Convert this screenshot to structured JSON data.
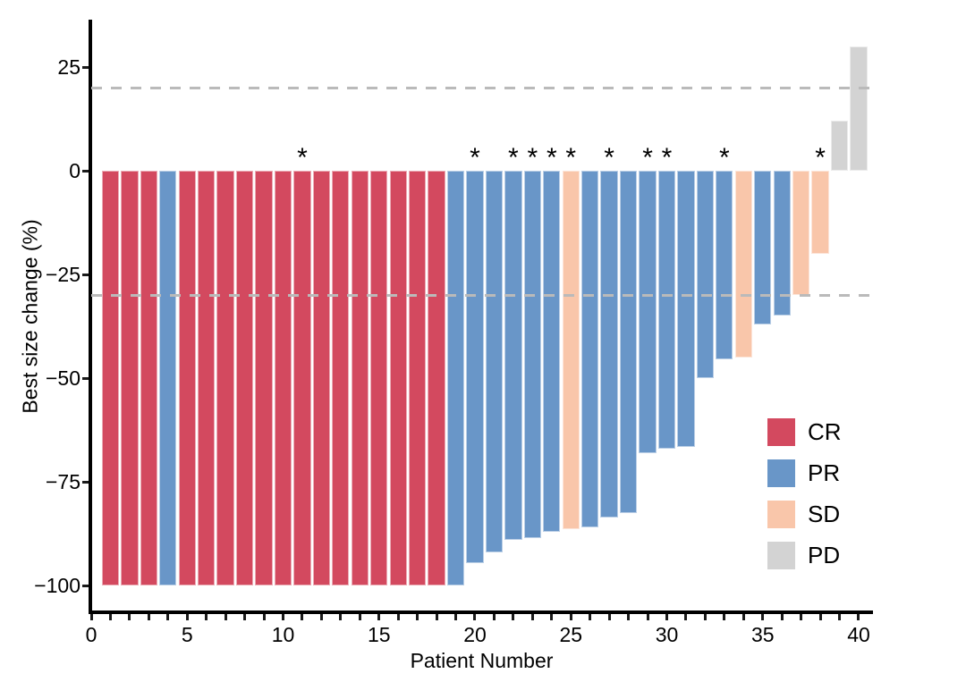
{
  "chart_data": {
    "type": "bar",
    "subtype": "waterfall",
    "title": "",
    "xlabel": "Patient Number",
    "ylabel": "Best size change (%)",
    "xlim": [
      0,
      40.7
    ],
    "ylim": [
      -106,
      36
    ],
    "grid": "off",
    "legend_position": "right-lower",
    "marker_symbol": "*",
    "marker_meaning_visible": false,
    "x_major_ticks": [
      {
        "value": 0,
        "label": "0"
      },
      {
        "value": 5,
        "label": "5"
      },
      {
        "value": 10,
        "label": "10"
      },
      {
        "value": 15,
        "label": "15"
      },
      {
        "value": 20,
        "label": "20"
      },
      {
        "value": 25,
        "label": "25"
      },
      {
        "value": 30,
        "label": "30"
      },
      {
        "value": 35,
        "label": "35"
      },
      {
        "value": 40,
        "label": "40"
      }
    ],
    "x_minor_tick_step": 1,
    "y_ticks": [
      {
        "value": 25,
        "label": "25"
      },
      {
        "value": 0,
        "label": "0"
      },
      {
        "value": -25,
        "label": "−25"
      },
      {
        "value": -50,
        "label": "−50"
      },
      {
        "value": -75,
        "label": "−75"
      },
      {
        "value": -100,
        "label": "−100"
      }
    ],
    "reference_lines": [
      {
        "value": 20,
        "style": "dashed",
        "color": "#bababa"
      },
      {
        "value": -30,
        "style": "dashed",
        "color": "#bababa"
      }
    ],
    "colors": {
      "CR": "#d3495f",
      "PR": "#6996c8",
      "SD": "#f9c6aa",
      "PD": "#d3d3d3"
    },
    "legend": [
      {
        "code": "CR",
        "label": "CR",
        "color": "#d3495f"
      },
      {
        "code": "PR",
        "label": "PR",
        "color": "#6996c8"
      },
      {
        "code": "SD",
        "label": "SD",
        "color": "#f9c6aa"
      },
      {
        "code": "PD",
        "label": "PD",
        "color": "#d3d3d3"
      }
    ],
    "bar_width_fraction": 0.9,
    "bars": [
      {
        "patient": 1,
        "value": -100,
        "response": "CR",
        "star": false
      },
      {
        "patient": 2,
        "value": -100,
        "response": "CR",
        "star": false
      },
      {
        "patient": 3,
        "value": -100,
        "response": "CR",
        "star": false
      },
      {
        "patient": 4,
        "value": -100,
        "response": "PR",
        "star": false
      },
      {
        "patient": 5,
        "value": -100,
        "response": "CR",
        "star": false
      },
      {
        "patient": 6,
        "value": -100,
        "response": "CR",
        "star": false
      },
      {
        "patient": 7,
        "value": -100,
        "response": "CR",
        "star": false
      },
      {
        "patient": 8,
        "value": -100,
        "response": "CR",
        "star": false
      },
      {
        "patient": 9,
        "value": -100,
        "response": "CR",
        "star": false
      },
      {
        "patient": 10,
        "value": -100,
        "response": "CR",
        "star": false
      },
      {
        "patient": 11,
        "value": -100,
        "response": "CR",
        "star": true
      },
      {
        "patient": 12,
        "value": -100,
        "response": "CR",
        "star": false
      },
      {
        "patient": 13,
        "value": -100,
        "response": "CR",
        "star": false
      },
      {
        "patient": 14,
        "value": -100,
        "response": "CR",
        "star": false
      },
      {
        "patient": 15,
        "value": -100,
        "response": "CR",
        "star": false
      },
      {
        "patient": 16,
        "value": -100,
        "response": "CR",
        "star": false
      },
      {
        "patient": 17,
        "value": -100,
        "response": "CR",
        "star": false
      },
      {
        "patient": 18,
        "value": -100,
        "response": "CR",
        "star": false
      },
      {
        "patient": 19,
        "value": -100,
        "response": "PR",
        "star": false
      },
      {
        "patient": 20,
        "value": -94.5,
        "response": "PR",
        "star": true
      },
      {
        "patient": 21,
        "value": -92,
        "response": "PR",
        "star": false
      },
      {
        "patient": 22,
        "value": -89,
        "response": "PR",
        "star": true
      },
      {
        "patient": 23,
        "value": -88.5,
        "response": "PR",
        "star": true
      },
      {
        "patient": 24,
        "value": -87,
        "response": "PR",
        "star": true
      },
      {
        "patient": 25,
        "value": -86.5,
        "response": "SD",
        "star": true
      },
      {
        "patient": 26,
        "value": -86,
        "response": "PR",
        "star": false
      },
      {
        "patient": 27,
        "value": -83.5,
        "response": "PR",
        "star": true
      },
      {
        "patient": 28,
        "value": -82.5,
        "response": "PR",
        "star": false
      },
      {
        "patient": 29,
        "value": -68,
        "response": "PR",
        "star": true
      },
      {
        "patient": 30,
        "value": -67,
        "response": "PR",
        "star": true
      },
      {
        "patient": 31,
        "value": -66.5,
        "response": "PR",
        "star": false
      },
      {
        "patient": 32,
        "value": -50,
        "response": "PR",
        "star": false
      },
      {
        "patient": 33,
        "value": -45.5,
        "response": "PR",
        "star": true
      },
      {
        "patient": 34,
        "value": -45,
        "response": "SD",
        "star": false
      },
      {
        "patient": 35,
        "value": -37,
        "response": "PR",
        "star": false
      },
      {
        "patient": 36,
        "value": -35,
        "response": "PR",
        "star": false
      },
      {
        "patient": 37,
        "value": -30,
        "response": "SD",
        "star": false
      },
      {
        "patient": 38,
        "value": -20,
        "response": "SD",
        "star": true
      },
      {
        "patient": 39,
        "value": 12,
        "response": "PD",
        "star": false
      },
      {
        "patient": 40,
        "value": 30,
        "response": "PD",
        "star": false
      }
    ]
  }
}
